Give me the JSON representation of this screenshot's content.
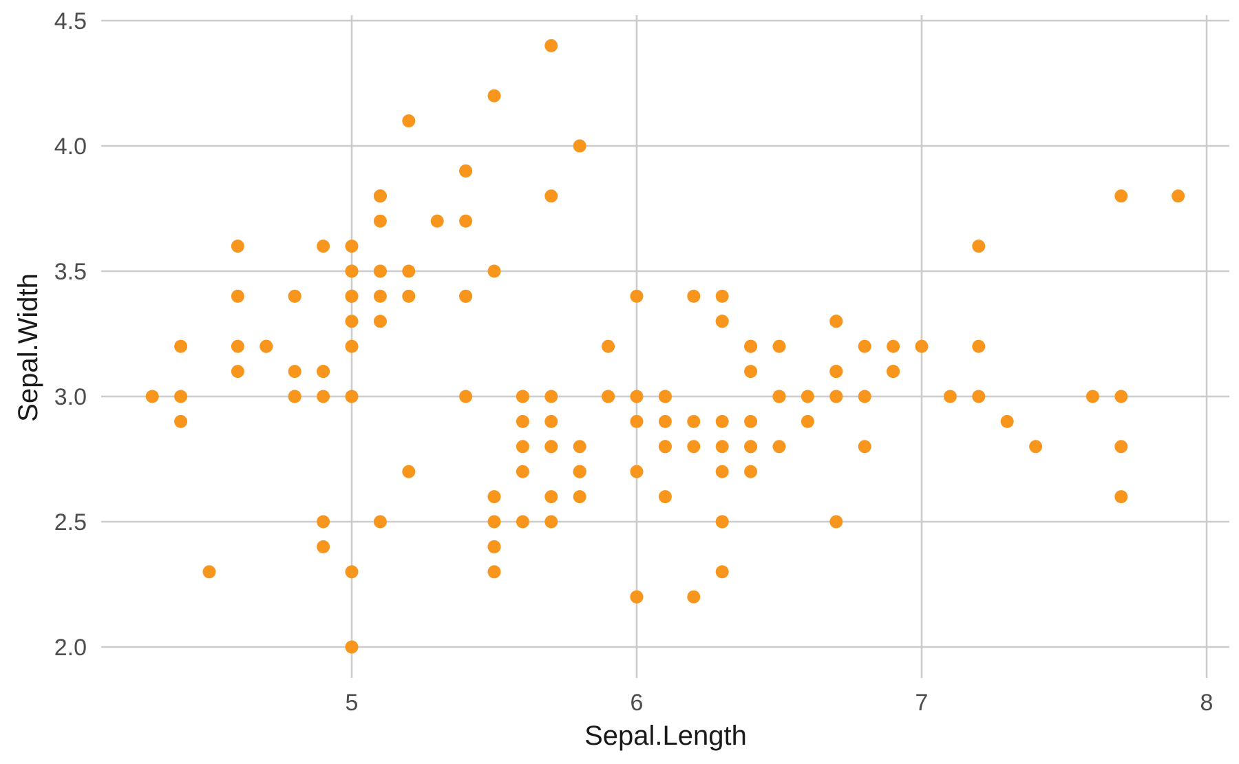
{
  "chart_data": {
    "type": "scatter",
    "xlabel": "Sepal.Length",
    "ylabel": "Sepal.Width",
    "xlim": [
      4.3,
      8.0
    ],
    "ylim": [
      2.0,
      4.5
    ],
    "x_ticks": [
      5,
      6,
      7,
      8
    ],
    "x_tick_labels": [
      "5",
      "6",
      "7",
      "8"
    ],
    "y_ticks": [
      2.0,
      2.5,
      3.0,
      3.5,
      4.0,
      4.5
    ],
    "y_tick_labels": [
      "2.0",
      "2.5",
      "3.0",
      "3.5",
      "4.0",
      "4.5"
    ],
    "grid": true,
    "point_color": "#f8951d",
    "x": [
      5.1,
      4.9,
      4.7,
      4.6,
      5.0,
      5.4,
      4.6,
      5.0,
      4.4,
      4.9,
      5.4,
      4.8,
      4.8,
      4.3,
      5.8,
      5.7,
      5.4,
      5.1,
      5.7,
      5.1,
      5.4,
      5.1,
      4.6,
      5.1,
      4.8,
      5.0,
      5.0,
      5.2,
      5.2,
      4.7,
      4.8,
      5.4,
      5.2,
      5.5,
      4.9,
      5.0,
      5.5,
      4.9,
      4.4,
      5.1,
      5.0,
      4.5,
      4.4,
      5.0,
      5.1,
      4.8,
      5.1,
      4.6,
      5.3,
      5.0,
      7.0,
      6.4,
      6.9,
      5.5,
      6.5,
      5.7,
      6.3,
      4.9,
      6.6,
      5.2,
      5.0,
      5.9,
      6.0,
      6.1,
      5.6,
      6.7,
      5.6,
      5.8,
      6.2,
      5.6,
      5.9,
      6.1,
      6.3,
      6.1,
      6.4,
      6.6,
      6.8,
      6.7,
      6.0,
      5.7,
      5.5,
      5.5,
      5.8,
      6.0,
      5.4,
      6.0,
      6.7,
      6.3,
      5.6,
      5.5,
      5.5,
      6.1,
      5.8,
      5.0,
      5.6,
      5.7,
      5.7,
      6.2,
      5.1,
      5.7,
      6.3,
      5.8,
      7.1,
      6.3,
      6.5,
      7.6,
      4.9,
      7.3,
      6.7,
      7.2,
      6.5,
      6.4,
      6.8,
      5.7,
      5.8,
      6.4,
      6.5,
      7.7,
      7.7,
      6.0,
      6.9,
      5.6,
      7.7,
      6.3,
      6.7,
      7.2,
      6.2,
      6.1,
      6.4,
      7.2,
      7.4,
      7.9,
      6.4,
      6.3,
      6.1,
      7.7,
      6.3,
      6.4,
      6.0,
      6.9,
      6.7,
      6.9,
      5.8,
      6.8,
      6.7,
      6.7,
      6.3,
      6.5,
      6.2,
      5.9
    ],
    "y": [
      3.5,
      3.0,
      3.2,
      3.1,
      3.6,
      3.9,
      3.4,
      3.4,
      2.9,
      3.1,
      3.7,
      3.4,
      3.0,
      3.0,
      4.0,
      4.4,
      3.9,
      3.5,
      3.8,
      3.8,
      3.4,
      3.7,
      3.6,
      3.3,
      3.4,
      3.0,
      3.4,
      3.5,
      3.4,
      3.2,
      3.1,
      3.4,
      4.1,
      4.2,
      3.1,
      3.2,
      3.5,
      3.6,
      3.0,
      3.4,
      3.5,
      2.3,
      3.2,
      3.5,
      3.8,
      3.0,
      3.8,
      3.2,
      3.7,
      3.3,
      3.2,
      3.2,
      3.1,
      2.3,
      2.8,
      2.8,
      3.3,
      2.4,
      2.9,
      2.7,
      2.0,
      3.0,
      2.2,
      2.9,
      2.9,
      3.1,
      3.0,
      2.7,
      2.2,
      2.5,
      3.2,
      2.8,
      2.5,
      2.8,
      2.9,
      3.0,
      2.8,
      3.0,
      2.9,
      2.6,
      2.4,
      2.4,
      2.7,
      2.7,
      3.0,
      3.4,
      3.1,
      2.3,
      3.0,
      2.5,
      2.6,
      3.0,
      2.6,
      2.3,
      2.7,
      3.0,
      2.9,
      2.9,
      2.5,
      2.8,
      3.3,
      2.7,
      3.0,
      2.9,
      3.0,
      3.0,
      2.5,
      2.9,
      2.5,
      3.6,
      3.2,
      2.7,
      3.0,
      2.5,
      2.8,
      3.2,
      3.0,
      3.8,
      2.6,
      2.2,
      3.2,
      2.8,
      2.8,
      2.7,
      3.3,
      3.2,
      2.8,
      3.0,
      2.8,
      3.0,
      2.8,
      3.8,
      2.8,
      2.8,
      2.6,
      3.0,
      3.4,
      3.1,
      3.0,
      3.1,
      3.1,
      3.1,
      2.7,
      3.2,
      3.3,
      3.0,
      2.5,
      3.0,
      3.4,
      3.0
    ]
  }
}
